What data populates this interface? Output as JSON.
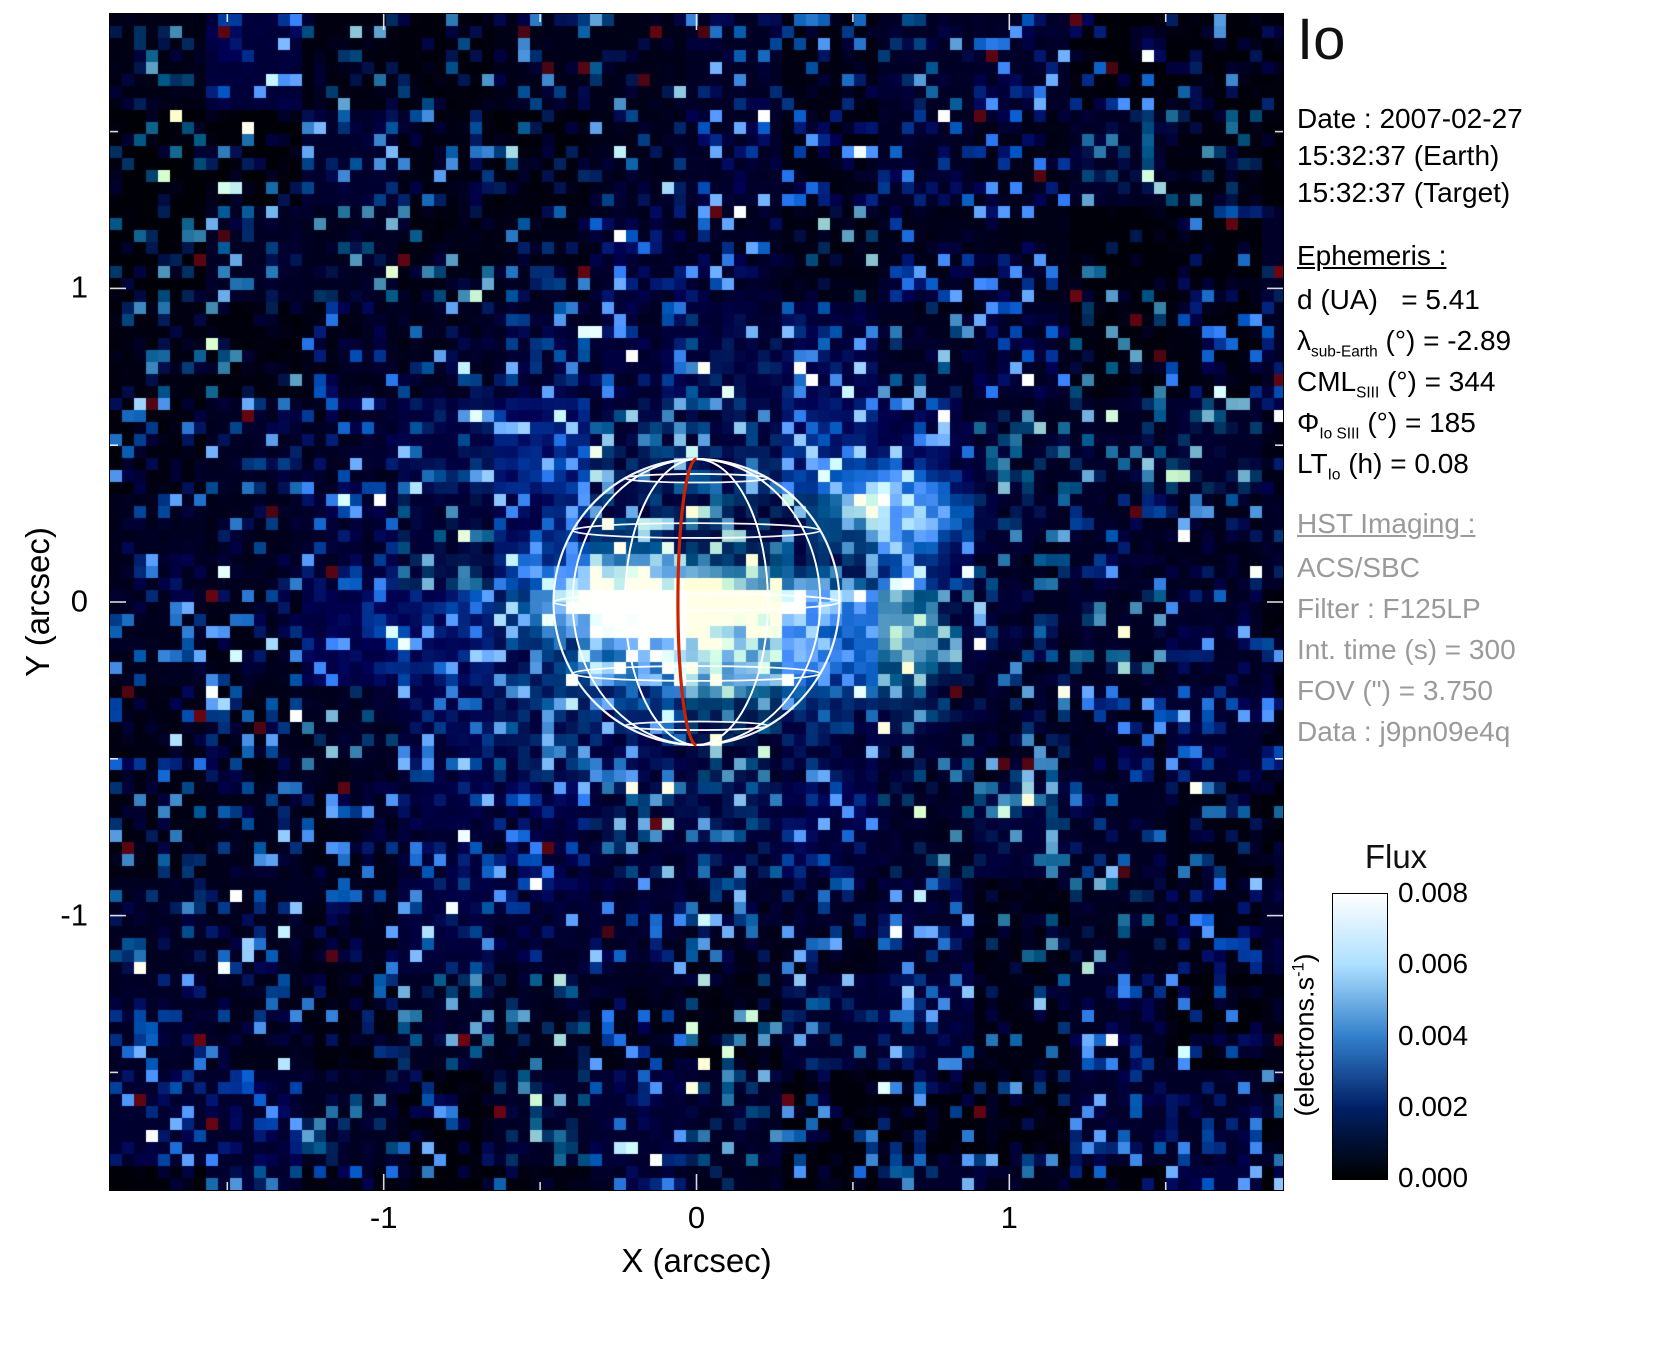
{
  "title": "Io",
  "axes": {
    "xlabel": "X (arcsec)",
    "ylabel": "Y (arcsec)",
    "xtick_labels": [
      "-1",
      "0",
      "1"
    ],
    "ytick_labels": [
      "1",
      "0",
      "-1"
    ]
  },
  "info_panel": {
    "date_lines": [
      "Date : 2007-02-27",
      "15:32:37 (Earth)",
      "15:32:37 (Target)"
    ],
    "ephemeris": {
      "heading": "Ephemeris :",
      "rows": [
        {
          "main": "d (UA)",
          "sub": "",
          "rest": "   = 5.41"
        },
        {
          "main": "λ",
          "sub": "sub-Earth",
          "rest": " (°) = -2.89"
        },
        {
          "main": "CML",
          "sub": "SIII",
          "rest": " (°) = 344"
        },
        {
          "main": "Φ",
          "sub": "Io SIII",
          "rest": " (°) = 185"
        },
        {
          "main": "LT",
          "sub": "Io",
          "rest": " (h) = 0.08"
        }
      ]
    },
    "hst": {
      "heading": "HST Imaging :",
      "rows": [
        "ACS/SBC",
        "Filter : F125LP",
        "Int. time (s) = 300",
        "FOV (\") = 3.750",
        "Data : j9pn09e4q"
      ]
    }
  },
  "colorbar": {
    "title": "Flux",
    "unit_main": "(electrons.s",
    "unit_sup": "-1",
    "unit_close": ")",
    "tick_labels": [
      "0.008",
      "0.006",
      "0.004",
      "0.002",
      "0.000"
    ]
  },
  "chart_data": {
    "type": "heatmap",
    "title": "Io",
    "xlabel": "X (arcsec)",
    "ylabel": "Y (arcsec)",
    "xlim": [
      -1.875,
      1.875
    ],
    "ylim": [
      -1.875,
      1.875
    ],
    "xticks": [
      -1,
      0,
      1
    ],
    "yticks": [
      1,
      0,
      -1
    ],
    "xticks_minor": [
      -1.5,
      -0.5,
      0.5,
      1.5
    ],
    "grid": false,
    "colorbar": {
      "label": "Flux",
      "unit": "electrons.s-1",
      "range": [
        0.0,
        0.008
      ],
      "ticks": [
        0.008,
        0.006,
        0.004,
        0.002,
        0.0
      ],
      "colormap_stops": [
        "#000000",
        "#002066",
        "#3380cc",
        "#acdfff",
        "#ffffff"
      ]
    },
    "description": "HST ACS/SBC far-UV image of Io (filter F125LP, 300 s): noisy dark-blue sky background with bright auroral emission concentrated near the disk centre; wireframe planetographic grid of Io overlaid with the sub-Earth central meridian drawn in red.",
    "globe_overlay": {
      "center_arcsec": [
        0,
        0
      ],
      "radius_arcsec": 0.457,
      "lat_lines_deg": [
        -60,
        -30,
        0,
        30,
        60
      ],
      "lon_lines_deg": [
        -60,
        -30,
        30,
        60
      ],
      "grid_color": "#ffffff",
      "central_meridian_color": "#cc2200"
    },
    "emission_features": [
      {
        "x": 0.0,
        "y": 0.0,
        "sx": 0.3,
        "sy": 0.06,
        "amp": 0.95,
        "note": "bright equatorial band at disk centre"
      },
      {
        "x": 0.05,
        "y": -0.18,
        "sx": 0.28,
        "sy": 0.1,
        "amp": 0.45,
        "note": "diffuse emission south of equator"
      },
      {
        "x": 0.62,
        "y": 0.3,
        "sx": 0.14,
        "sy": 0.08,
        "amp": 0.6,
        "note": "bright patch upper-right of disk"
      },
      {
        "x": 0.68,
        "y": -0.1,
        "sx": 0.07,
        "sy": 0.12,
        "amp": 0.45,
        "note": "patch right of disk"
      },
      {
        "x": -0.25,
        "y": 0.05,
        "sx": 0.15,
        "sy": 0.1,
        "amp": 0.35,
        "note": "patch left of disk centre"
      },
      {
        "x": 0.0,
        "y": 0.0,
        "sx": 0.75,
        "sy": 0.65,
        "amp": 0.2,
        "note": "diffuse halo around disk"
      }
    ]
  }
}
